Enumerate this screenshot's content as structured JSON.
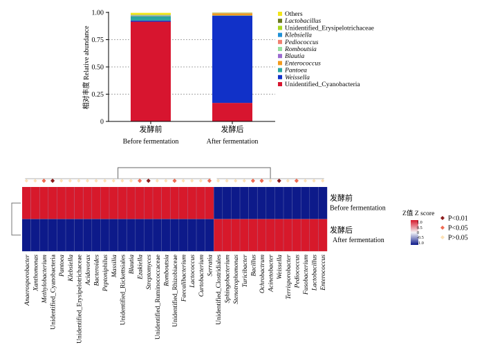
{
  "chart_data": [
    {
      "type": "bar",
      "stacked": true,
      "ylabel": "相对丰度 Relative abundance",
      "ylim": [
        0,
        1
      ],
      "yticks": [
        "0",
        "0.25",
        "0.50",
        "0.75",
        "1.00"
      ],
      "grid": "dashed horizontal at 0.25, 0.50, 0.75",
      "legend_position": "right",
      "categories": [
        {
          "cn": "发酵前",
          "en": "Before fermentation"
        },
        {
          "cn": "发酵后",
          "en": "After fermentation"
        }
      ],
      "series": [
        {
          "name": "Unidentified_Cyanobacteria",
          "italic": false,
          "color": "#d7152f",
          "values": [
            0.915,
            0.17
          ]
        },
        {
          "name": "Weissella",
          "italic": true,
          "color": "#1131c8",
          "values": [
            0.01,
            0.8
          ]
        },
        {
          "name": "Pantoea",
          "italic": true,
          "color": "#2aa6a0",
          "values": [
            0.04,
            0.002
          ]
        },
        {
          "name": "Enterococcus",
          "italic": true,
          "color": "#f29a1c",
          "values": [
            0.002,
            0.02
          ]
        },
        {
          "name": "Blautia",
          "italic": true,
          "color": "#9a6bd0",
          "values": [
            0.002,
            0.001
          ]
        },
        {
          "name": "Romboutsia",
          "italic": true,
          "color": "#96dfa0",
          "values": [
            0.002,
            0.001
          ]
        },
        {
          "name": "Pediococcus",
          "italic": true,
          "color": "#f08070",
          "values": [
            0.002,
            0.001
          ]
        },
        {
          "name": "Klebsiella",
          "italic": true,
          "color": "#1e90d6",
          "values": [
            0.002,
            0.001
          ]
        },
        {
          "name": "Unidentified_Erysipelotrichaceae",
          "italic": false,
          "color": "#a8d820",
          "values": [
            0.002,
            0.001
          ]
        },
        {
          "name": "Lactobacillus",
          "italic": true,
          "color": "#6b7a1e",
          "values": [
            0.002,
            0.001
          ]
        },
        {
          "name": "Others",
          "italic": false,
          "color": "#f2e51a",
          "values": [
            0.017,
            0.002
          ]
        }
      ]
    },
    {
      "type": "heatmap",
      "rows": [
        {
          "cn": "发酵前",
          "en": "Before fermentation"
        },
        {
          "cn": "发酵后",
          "en": "After fermentation"
        }
      ],
      "columns": [
        {
          "name": "Anaerosporobacter",
          "italic": true
        },
        {
          "name": "Xanthomonas",
          "italic": true
        },
        {
          "name": "Methylobacterium",
          "italic": true
        },
        {
          "name": "Unidentified_Cyanobacteria",
          "italic": false
        },
        {
          "name": "Pantoea",
          "italic": true
        },
        {
          "name": "Klebsiella",
          "italic": true
        },
        {
          "name": "Unidentified_Erysipelotrichaceae",
          "italic": false
        },
        {
          "name": "Acidovorax",
          "italic": true
        },
        {
          "name": "Bacteroides",
          "italic": true
        },
        {
          "name": "Peptoniphilus",
          "italic": true
        },
        {
          "name": "Massilia",
          "italic": true
        },
        {
          "name": "Unidentified_Rickettsiales",
          "italic": false
        },
        {
          "name": "Blautia",
          "italic": true
        },
        {
          "name": "Ezakiella",
          "italic": true
        },
        {
          "name": "Streptomyces",
          "italic": true
        },
        {
          "name": "Unidentified_Ruminococcaceae",
          "italic": false
        },
        {
          "name": "Romboutsia",
          "italic": true
        },
        {
          "name": "Unidentified_Rhizobiaceae",
          "italic": false
        },
        {
          "name": "Faecalibacterium",
          "italic": true
        },
        {
          "name": "Lactococcus",
          "italic": true
        },
        {
          "name": "Curtobacterium",
          "italic": true
        },
        {
          "name": "Serratia",
          "italic": true
        },
        {
          "name": "Unidentified_Clostridiales",
          "italic": false
        },
        {
          "name": "Sphingobacterium",
          "italic": true
        },
        {
          "name": "Stenotrophomonas",
          "italic": true
        },
        {
          "name": "Turicibacter",
          "italic": true
        },
        {
          "name": "Bacillus",
          "italic": true
        },
        {
          "name": "Ochrobactrum",
          "italic": true
        },
        {
          "name": "Acinetobacter",
          "italic": true
        },
        {
          "name": "Weissella",
          "italic": true
        },
        {
          "name": "Terrisporobacter",
          "italic": true
        },
        {
          "name": "Pediococcus",
          "italic": true
        },
        {
          "name": "Fusobacterium",
          "italic": true
        },
        {
          "name": "Lactobacillus",
          "italic": true
        },
        {
          "name": "Enterococcus",
          "italic": true
        }
      ],
      "values": [
        [
          1,
          1,
          1,
          1,
          1,
          1,
          1,
          1,
          1,
          1,
          1,
          1,
          1,
          1,
          1,
          1,
          1,
          1,
          1,
          1,
          1,
          1,
          -1,
          -1,
          -1,
          -1,
          -1,
          -1,
          -1,
          -1,
          -1,
          -1,
          -1,
          -1,
          -1
        ],
        [
          -1,
          -1,
          -1,
          -1,
          -1,
          -1,
          -1,
          -1,
          -1,
          -1,
          -1,
          -1,
          -1,
          -1,
          -1,
          -1,
          -1,
          -1,
          -1,
          -1,
          -1,
          -1,
          1,
          1,
          1,
          1,
          1,
          1,
          1,
          1,
          1,
          1,
          1,
          1,
          1
        ]
      ],
      "significance": [
        0,
        0,
        1,
        2,
        0,
        0,
        0,
        0,
        0,
        0,
        0,
        0,
        0,
        1,
        2,
        0,
        0,
        1,
        0,
        0,
        0,
        1,
        0,
        0,
        0,
        0,
        1,
        1,
        0,
        2,
        0,
        1,
        0,
        0,
        0
      ],
      "colorbar": {
        "title": "Z值 Z score",
        "ticks": [
          "1.0",
          "0.5",
          "0",
          "-0.5",
          "-1.0"
        ],
        "high_color": "#d7192b",
        "low_color": "#0d1a8a"
      },
      "significance_legend": [
        {
          "label": "P<0.01",
          "color": "#8b1a1a"
        },
        {
          "label": "P<0.05",
          "color": "#ef6b52"
        },
        {
          "label": "P>0.05",
          "color": "#fde1b5"
        }
      ]
    }
  ]
}
